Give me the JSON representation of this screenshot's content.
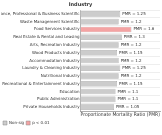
{
  "chart_data": {
    "type": "bar",
    "orientation": "horizontal",
    "stacked": true,
    "title": "Industry",
    "x_label": "Proportionate Mortality Ratio (PMR)",
    "categories": [
      "Finance, Professional & Business Scientific",
      "Waste Management Scientific",
      "Food Services Industry",
      "Real Estate & Rental and Leasing",
      "Arts, Recreation Industry",
      "Wood Products Industry",
      "Accommodation Industry",
      "Laundry & Cleaning Industry",
      "Nutritional Industry",
      "Recreational & Entertainment Industry",
      "Education",
      "Public Administration",
      "Private Households Industry"
    ],
    "series": [
      {
        "name": "Non-sig",
        "color": "#cccccc",
        "values": [
          1.25,
          1.2,
          null,
          1.3,
          1.2,
          1.15,
          1.2,
          1.25,
          1.2,
          1.15,
          1.1,
          1.1,
          1.05
        ],
        "value_labels": [
          "PMR = 1.25",
          "PMR = 1.2",
          null,
          "PMR = 1.3",
          "PMR = 1.2",
          "PMR = 1.15",
          "PMR = 1.2",
          "PMR = 1.25",
          "PMR = 1.2",
          "PMR = 1.15",
          "PMR = 1.1",
          "PMR = 1.1",
          "PMR = 1.05"
        ]
      },
      {
        "name": "p < 0.01",
        "color": "#f4a3a3",
        "values": [
          null,
          null,
          1.6,
          null,
          null,
          null,
          null,
          null,
          null,
          null,
          null,
          null,
          null
        ],
        "value_labels": [
          null,
          null,
          "PMR = 1.6",
          null,
          null,
          null,
          null,
          null,
          null,
          null,
          null,
          null,
          null
        ]
      }
    ],
    "xlim": [
      0,
      2.5
    ],
    "tick_labels": false,
    "grid": false,
    "data_labels": true,
    "legend": "bottom left"
  }
}
